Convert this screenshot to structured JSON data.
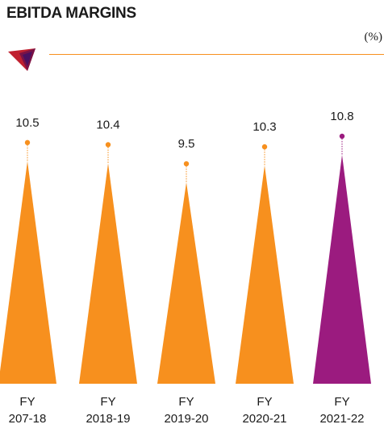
{
  "title": "EBITDA MARGINS",
  "unit_label": "(%)",
  "colors": {
    "default": "#f7901e",
    "highlight": "#9b1b7f",
    "axis_line": "#f7901e",
    "text": "#1a1a1a"
  },
  "chart_data": {
    "type": "bar",
    "title": "EBITDA MARGINS",
    "ylabel": "(%)",
    "categories": [
      {
        "line1": "FY",
        "line2": "207-18"
      },
      {
        "line1": "FY",
        "line2": "2018-19"
      },
      {
        "line1": "FY",
        "line2": "2019-20"
      },
      {
        "line1": "FY",
        "line2": "2020-21"
      },
      {
        "line1": "FY",
        "line2": "2021-22"
      }
    ],
    "values": [
      10.5,
      10.4,
      9.5,
      10.3,
      10.8
    ],
    "value_labels": [
      "10.5",
      "10.4",
      "9.5",
      "10.3",
      "10.8"
    ],
    "highlight_index": 4,
    "grid": false,
    "legend": "none"
  }
}
